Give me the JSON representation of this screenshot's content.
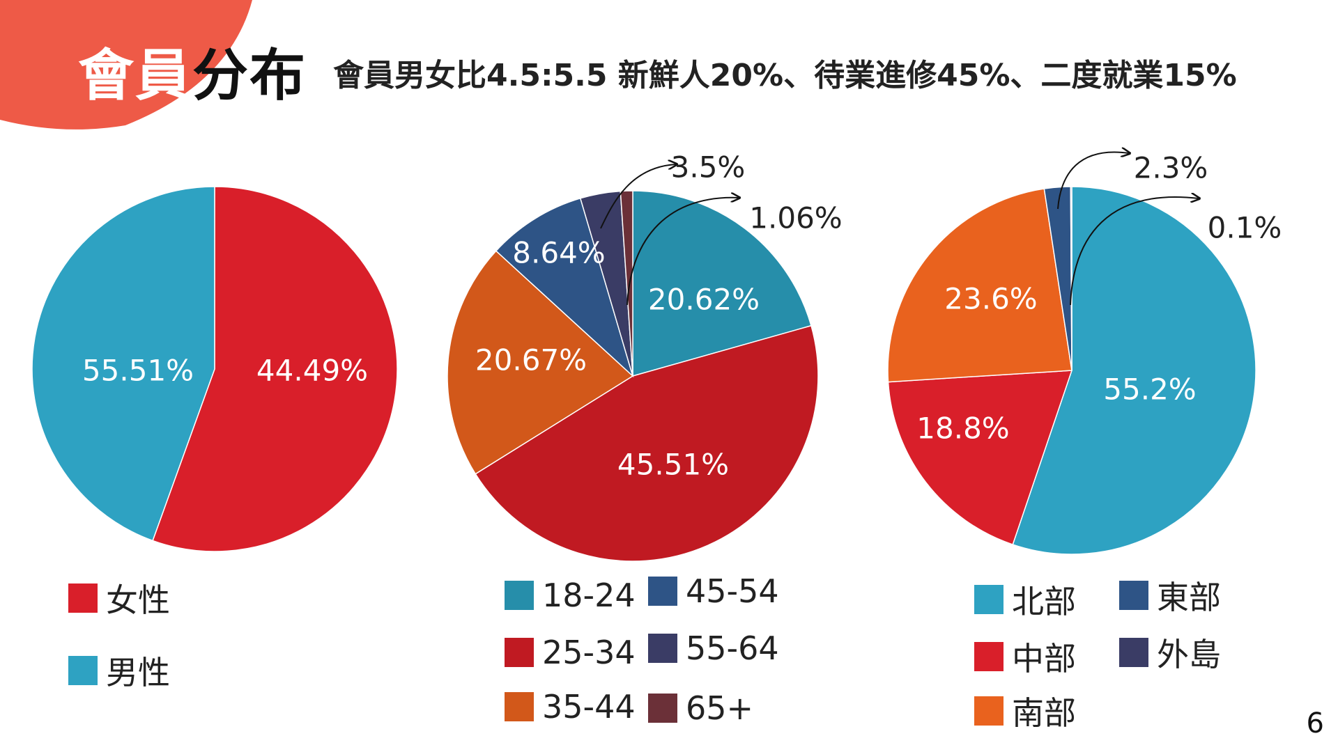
{
  "header": {
    "title_part1": "會員",
    "title_part2": "分布",
    "subtitle": "會員男女比4.5:5.5 新鮮人20%、待業進修45%、二度就業15%"
  },
  "page_number": "6",
  "chart_data": [
    {
      "type": "pie",
      "categories": [
        "女性",
        "男性"
      ],
      "values": [
        55.51,
        44.49
      ],
      "labels": [
        "55.51%",
        "44.49%"
      ],
      "colors": [
        "#D91F2A",
        "#2EA2C2"
      ]
    },
    {
      "type": "pie",
      "categories": [
        "18-24",
        "25-34",
        "35-44",
        "45-54",
        "55-64",
        "65+"
      ],
      "values": [
        20.62,
        45.51,
        20.67,
        8.64,
        3.5,
        1.06
      ],
      "labels": [
        "20.62%",
        "45.51%",
        "20.67%",
        "8.64%",
        "3.5%",
        "1.06%"
      ],
      "colors": [
        "#268EAA",
        "#C01A22",
        "#D2581A",
        "#2E5486",
        "#3A3C65",
        "#6B3038"
      ]
    },
    {
      "type": "pie",
      "categories": [
        "北部",
        "中部",
        "南部",
        "東部",
        "外島"
      ],
      "values": [
        55.2,
        18.8,
        23.6,
        2.3,
        0.1
      ],
      "labels": [
        "55.2%",
        "18.8%",
        "23.6%",
        "2.3%",
        "0.1%"
      ],
      "colors": [
        "#2EA2C2",
        "#D91F2A",
        "#E9621E",
        "#2E5486",
        "#3A3C65"
      ]
    }
  ]
}
